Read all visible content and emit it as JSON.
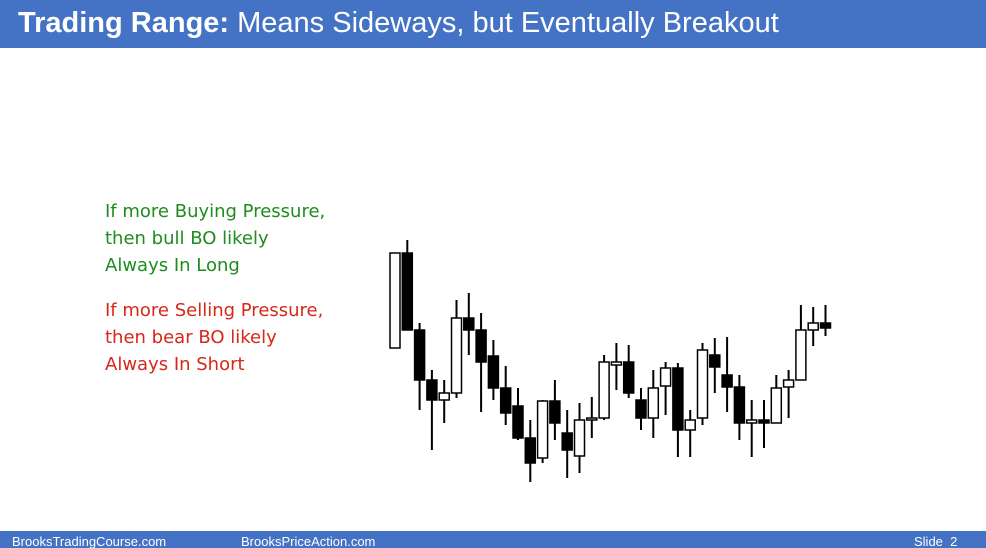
{
  "header": {
    "title_bold": "Trading Range:",
    "title_rest": "Means Sideways, but Eventually Breakout"
  },
  "notes": {
    "bull": [
      "If more Buying Pressure,",
      "then bull BO likely",
      "Always In Long"
    ],
    "bear": [
      "If more Selling Pressure,",
      "then bear BO likely",
      "Always In Short"
    ]
  },
  "footer": {
    "left": "BrooksTradingCourse.com",
    "center": "BrooksPriceAction.com",
    "slide": "Slide  2"
  },
  "chart_data": {
    "type": "candlestick",
    "up_color": "#ffffff",
    "down_color": "#000000",
    "open": [
      152,
      247,
      170,
      120,
      100,
      107,
      182,
      170,
      144,
      112,
      94,
      62,
      42,
      99,
      67,
      44,
      80,
      82,
      135,
      138,
      100,
      82,
      114,
      132,
      70,
      82,
      145,
      125,
      113,
      77,
      80,
      77,
      113,
      120,
      170,
      177
    ],
    "high": [
      247,
      260,
      177,
      130,
      120,
      200,
      207,
      187,
      160,
      134,
      112,
      80,
      100,
      120,
      90,
      97,
      103,
      145,
      157,
      155,
      112,
      130,
      138,
      137,
      90,
      157,
      162,
      163,
      125,
      100,
      100,
      125,
      130,
      195,
      193,
      195
    ],
    "low": [
      152,
      170,
      90,
      50,
      77,
      102,
      145,
      88,
      100,
      75,
      60,
      18,
      37,
      60,
      22,
      27,
      62,
      80,
      110,
      102,
      70,
      62,
      85,
      43,
      43,
      75,
      107,
      88,
      60,
      43,
      52,
      77,
      82,
      120,
      154,
      164
    ],
    "close": [
      247,
      170,
      120,
      100,
      107,
      182,
      170,
      138,
      112,
      87,
      62,
      37,
      99,
      77,
      50,
      80,
      82,
      138,
      138,
      107,
      82,
      112,
      132,
      70,
      80,
      150,
      133,
      113,
      77,
      80,
      77,
      112,
      120,
      170,
      177,
      172
    ]
  }
}
